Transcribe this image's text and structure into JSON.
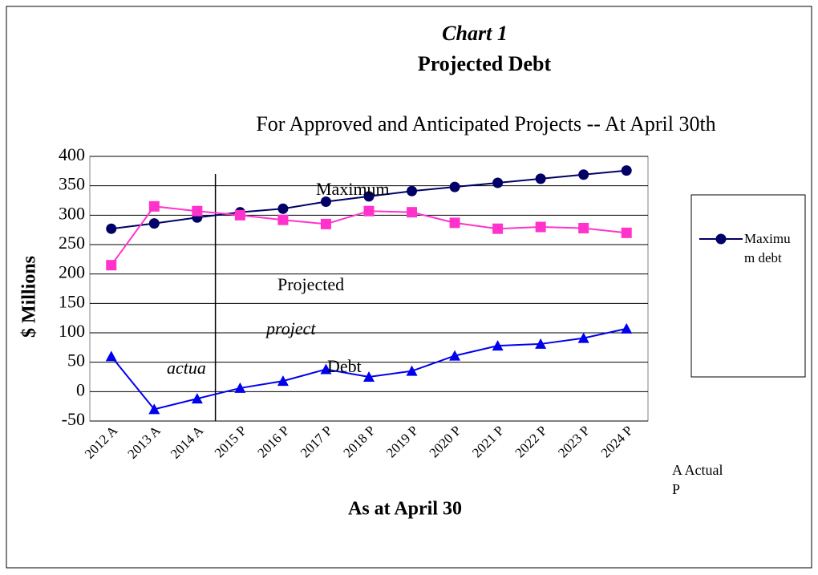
{
  "chart_data": {
    "type": "line",
    "title": "Chart 1",
    "subtitle": "Projected Debt",
    "caption": "For Approved and Anticipated Projects -- At April 30th",
    "x_label": "As at April 30",
    "y_label": "$ Millions",
    "categories": [
      "2012 A",
      "2013 A",
      "2014 A",
      "2015 P",
      "2016 P",
      "2017 P",
      "2018 P",
      "2019 P",
      "2020 P",
      "2021 P",
      "2022 P",
      "2023 P",
      "2024 P"
    ],
    "series": [
      {
        "name": "Maximum debt",
        "color": "#000066",
        "marker": "circle",
        "values": [
          277,
          286,
          296,
          305,
          311,
          323,
          332,
          341,
          348,
          355,
          362,
          369,
          376
        ]
      },
      {
        "color": "#ff33cc",
        "marker": "square",
        "values": [
          215,
          315,
          307,
          300,
          292,
          285,
          307,
          305,
          287,
          277,
          280,
          278,
          270
        ]
      },
      {
        "color": "#0000ee",
        "marker": "triangle",
        "values": [
          60,
          -30,
          -12,
          6,
          18,
          38,
          25,
          35,
          61,
          78,
          81,
          91,
          107
        ]
      }
    ],
    "annotations": [
      {
        "text": "Maximum",
        "italic": false
      },
      {
        "text": "Projected",
        "italic": false
      },
      {
        "text": "project",
        "italic": true
      },
      {
        "text": "Debt",
        "italic": false
      },
      {
        "text": "actua",
        "italic": true
      }
    ],
    "notes": [
      "A Actual",
      "P"
    ],
    "ylim": [
      -50,
      400
    ],
    "yticks": [
      -50,
      0,
      50,
      100,
      150,
      200,
      250,
      300,
      350,
      400
    ],
    "grid": true
  }
}
